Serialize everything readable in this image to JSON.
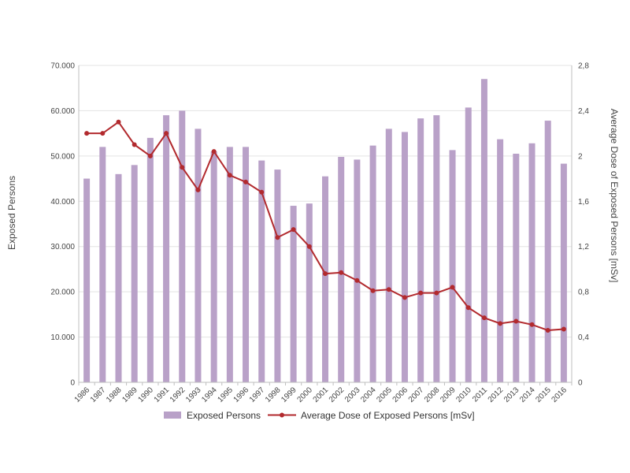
{
  "chart_data": {
    "type": "bar+line",
    "title": "",
    "categories": [
      "1986",
      "1987",
      "1988",
      "1989",
      "1990",
      "1991",
      "1992",
      "1993",
      "1994",
      "1995",
      "1996",
      "1997",
      "1998",
      "1999",
      "2000",
      "2001",
      "2002",
      "2003",
      "2004",
      "2005",
      "2006",
      "2007",
      "2008",
      "2009",
      "2010",
      "2011",
      "2012",
      "2013",
      "2014",
      "2015",
      "2016"
    ],
    "series": [
      {
        "name": "Exposed Persons",
        "type": "bar",
        "axis": "left",
        "color": "#b9a1c8",
        "values": [
          45000,
          52000,
          46000,
          48000,
          54000,
          59000,
          60000,
          56000,
          51000,
          52000,
          52000,
          49000,
          47000,
          39000,
          39500,
          45500,
          49800,
          49200,
          52300,
          56000,
          55300,
          58300,
          59000,
          51300,
          60700,
          67000,
          53700,
          50500,
          52800,
          57800,
          48300
        ]
      },
      {
        "name": "Average Dose of Exposed Persons [mSv]",
        "type": "line",
        "axis": "right",
        "color": "#b22a2e",
        "values": [
          2.2,
          2.2,
          2.3,
          2.1,
          2.0,
          2.2,
          1.9,
          1.7,
          2.04,
          1.83,
          1.77,
          1.68,
          1.28,
          1.35,
          1.2,
          0.96,
          0.97,
          0.9,
          0.81,
          0.82,
          0.75,
          0.79,
          0.79,
          0.84,
          0.66,
          0.57,
          0.52,
          0.54,
          0.51,
          0.46,
          0.47
        ]
      }
    ],
    "ylabel_left": "Exposed Persons",
    "ylabel_right": "Average Dose of Exposed Persons [mSv]",
    "ylim_left": [
      0,
      70000
    ],
    "ylim_right": [
      0,
      2.8
    ],
    "yticks_left": [
      "0",
      "10.000",
      "20.000",
      "30.000",
      "40.000",
      "50.000",
      "60.000",
      "70.000"
    ],
    "yticks_right": [
      "0",
      "0,4",
      "0,8",
      "1,2",
      "1,6",
      "2",
      "2,4",
      "2,8"
    ],
    "grid": true,
    "legend_position": "bottom"
  }
}
